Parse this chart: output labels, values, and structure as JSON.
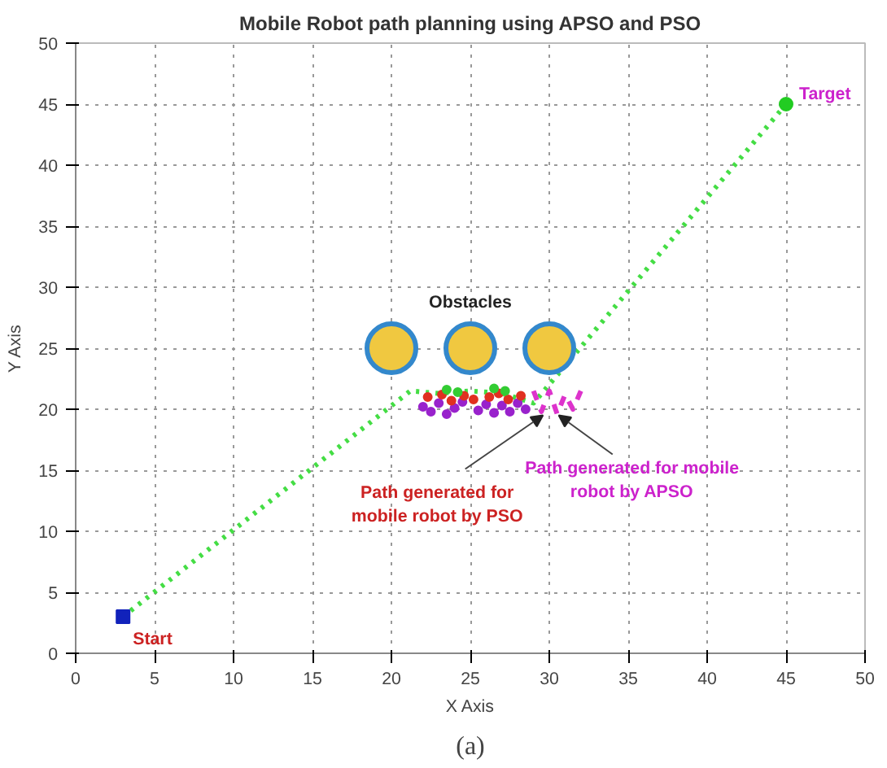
{
  "chart_data": {
    "type": "scatter",
    "title": "Mobile Robot path planning using APSO and PSO",
    "xlabel": "X Axis",
    "ylabel": "Y Axis",
    "xlim": [
      0,
      50
    ],
    "ylim": [
      0,
      50
    ],
    "xticks": [
      0,
      5,
      10,
      15,
      20,
      25,
      30,
      35,
      40,
      45,
      50
    ],
    "yticks": [
      0,
      5,
      10,
      15,
      20,
      25,
      30,
      35,
      40,
      45,
      50
    ],
    "grid": true,
    "series": [
      {
        "type": "line",
        "color": "#44dd44",
        "line_style": "dotted",
        "marker": "none",
        "x": [
          3,
          21.2,
          23,
          25,
          27,
          29,
          45
        ],
        "values": [
          3,
          21.5,
          21.3,
          21.5,
          21.3,
          20.5,
          45
        ]
      },
      {
        "color": "#9922cc",
        "marker": "circle",
        "x": [
          22,
          22.5,
          23,
          23.5,
          24,
          24.5,
          25.5,
          26,
          26.5,
          27,
          27.5,
          28,
          28.5
        ],
        "values": [
          20.2,
          19.8,
          20.5,
          19.6,
          20.1,
          20.6,
          19.9,
          20.4,
          19.7,
          20.3,
          19.8,
          20.5,
          20.0
        ]
      },
      {
        "color": "#e03020",
        "marker": "circle",
        "x": [
          22.3,
          23.2,
          23.8,
          24.6,
          25.2,
          26.2,
          26.8,
          27.4,
          28.2
        ],
        "values": [
          21.0,
          21.2,
          20.7,
          21.1,
          20.8,
          21.0,
          21.3,
          20.8,
          21.1
        ]
      },
      {
        "color": "#33cc33",
        "marker": "circle",
        "x": [
          23.5,
          24.2,
          26.5,
          27.2
        ],
        "values": [
          21.6,
          21.4,
          21.7,
          21.5
        ]
      },
      {
        "type": "line",
        "color": "#dd33cc",
        "line_style": "dashed",
        "marker": "none",
        "x": [
          29,
          29.5,
          30,
          30.5,
          31,
          31.5,
          32
        ],
        "values": [
          21.5,
          19.8,
          21.5,
          19.6,
          21.2,
          20.0,
          21.5
        ]
      },
      {
        "color": "#1122bb",
        "marker": "square",
        "x": [
          3
        ],
        "values": [
          3
        ]
      },
      {
        "color": "#22cc22",
        "marker": "circle",
        "x": [
          45
        ],
        "values": [
          45
        ]
      },
      {
        "color": "#f0c840",
        "marker": "circle",
        "x": [
          20,
          25,
          30
        ],
        "values": [
          25,
          25,
          25
        ]
      }
    ],
    "annotations": [
      {
        "text": "Target",
        "x": 45,
        "y": 45
      },
      {
        "text": "Start",
        "x": 3,
        "y": 3
      },
      {
        "text": "Obstacles",
        "x": 25,
        "y": 25
      },
      {
        "text": "Path generated for mobile robot by PSO",
        "x": 29.6,
        "y": 19.5
      },
      {
        "text": "Path generated for mobile robot by APSO",
        "x": 30.6,
        "y": 19.5
      },
      "(a)"
    ]
  }
}
